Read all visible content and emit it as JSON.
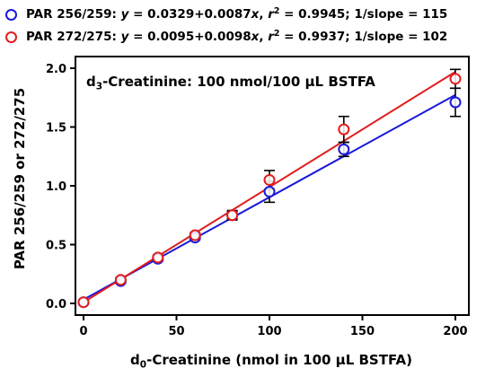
{
  "legend": [
    {
      "prefix": "PAR 256/259: ",
      "eq_y": "y",
      "eq_mid": " = 0.0329+0.0087",
      "eq_x": "x",
      "r_pre": ", ",
      "r_sym": "r",
      "r_exp": "2",
      "r_post": " = 0.9945; 1/slope = 115",
      "color": "#1a1adb"
    },
    {
      "prefix": "PAR 272/275: ",
      "eq_y": "y",
      "eq_mid": " = 0.0095+0.0098",
      "eq_x": "x",
      "r_pre": ", ",
      "r_sym": "r",
      "r_exp": "2",
      "r_post": " = 0.9937; 1/slope = 102",
      "color": "#e01e1e"
    }
  ],
  "annotation": {
    "pre": "d",
    "sub": "3",
    "post": "-Creatinine: 100 nmol/100 µL BSTFA"
  },
  "ylabel": "PAR 256/259 or 272/275",
  "xlabel": {
    "pre": "d",
    "sub": "0",
    "post": "-Creatinine (nmol in 100 µL BSTFA)"
  },
  "chart_data": {
    "type": "scatter",
    "xlim": [
      0,
      200
    ],
    "ylim": [
      0,
      2.0
    ],
    "xticks": [
      0,
      50,
      100,
      150,
      200
    ],
    "yticks": [
      0.0,
      0.5,
      1.0,
      1.5,
      2.0
    ],
    "ytick_labels": [
      "0.0",
      "0.5",
      "1.0",
      "1.5",
      "2.0"
    ],
    "grid": false,
    "legend_position": "top",
    "series": [
      {
        "color": "#1a1adb",
        "x": [
          0,
          20,
          40,
          60,
          80,
          100,
          140,
          200
        ],
        "y": [
          0.01,
          0.19,
          0.38,
          0.56,
          0.75,
          0.95,
          1.31,
          1.71
        ],
        "err": [
          0.01,
          0.02,
          0.02,
          0.02,
          0.04,
          0.09,
          0.06,
          0.12
        ],
        "fit": {
          "intercept": 0.0329,
          "slope": 0.0087
        }
      },
      {
        "color": "#e01e1e",
        "x": [
          0,
          20,
          40,
          60,
          80,
          100,
          140,
          200
        ],
        "y": [
          0.01,
          0.2,
          0.39,
          0.58,
          0.75,
          1.05,
          1.48,
          1.91
        ],
        "err": [
          0.01,
          0.02,
          0.02,
          0.02,
          0.03,
          0.08,
          0.11,
          0.08
        ],
        "fit": {
          "intercept": 0.0095,
          "slope": 0.0098
        }
      }
    ]
  }
}
